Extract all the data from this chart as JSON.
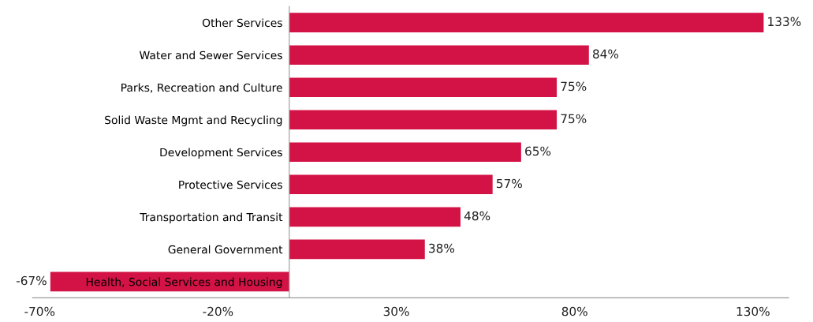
{
  "chart_data": {
    "type": "bar",
    "orientation": "horizontal",
    "categories": [
      "Other Services",
      "Water and Sewer Services",
      "Parks, Recreation and Culture",
      "Solid Waste Mgmt and Recycling",
      "Development Services",
      "Protective Services",
      "Transportation and Transit",
      "General Government",
      "Health, Social Services and Housing"
    ],
    "values": [
      133,
      84,
      75,
      75,
      65,
      57,
      48,
      38,
      -67
    ],
    "value_labels": [
      "133%",
      "84%",
      "75%",
      "75%",
      "65%",
      "57%",
      "48%",
      "38%",
      "-67%"
    ],
    "color": "#d31245",
    "xlim": [
      -72,
      140
    ],
    "xticks": [
      {
        "value": -70,
        "label": "-70%"
      },
      {
        "value": -20,
        "label": "-20%"
      },
      {
        "value": 30,
        "label": "30%"
      },
      {
        "value": 80,
        "label": "80%"
      },
      {
        "value": 130,
        "label": "130%"
      }
    ],
    "grid": false,
    "legend": false
  }
}
